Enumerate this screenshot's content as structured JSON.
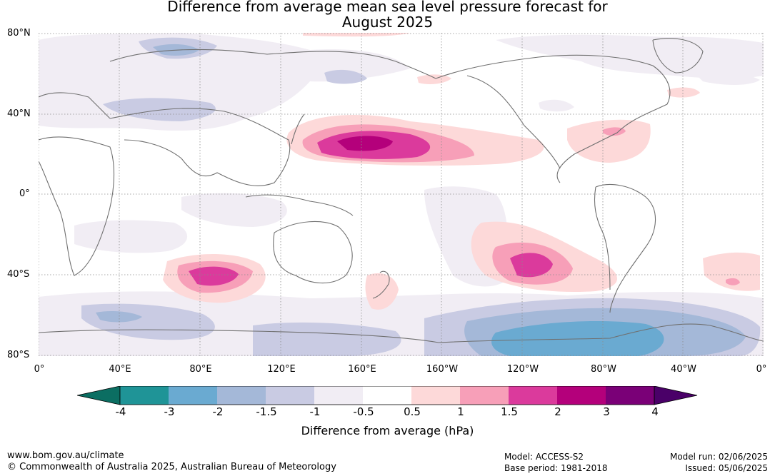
{
  "title_line1": "Difference from average mean sea level pressure forecast for",
  "title_line2": "August 2025",
  "lat_labels": [
    "80°N",
    "40°N",
    "0°",
    "40°S",
    "80°S"
  ],
  "lon_labels": [
    "0°",
    "40°E",
    "80°E",
    "120°E",
    "160°E",
    "160°W",
    "120°W",
    "80°W",
    "40°W",
    "0°"
  ],
  "colorbar": {
    "ticks": [
      "-4",
      "-3",
      "-2",
      "-1.5",
      "-1",
      "-0.5",
      "0.5",
      "1",
      "1.5",
      "2",
      "3",
      "4"
    ],
    "colors": [
      "#0b6e62",
      "#1f9497",
      "#6aaad1",
      "#a4b8d8",
      "#c9cbe3",
      "#f1edf4",
      "#ffffff",
      "#fdd9d9",
      "#f79fb8",
      "#db3a9c",
      "#b4007b",
      "#7a0077",
      "#4a0068"
    ],
    "label": "Difference from average (hPa)"
  },
  "footer": {
    "url": "www.bom.gov.au/climate",
    "copyright": "© Commonwealth of Australia 2025, Australian Bureau of Meteorology",
    "model": "Model: ACCESS-S2",
    "base_period": "Base period: 1981-2018",
    "model_run": "Model run: 02/06/2025",
    "issued": "Issued: 05/06/2025"
  }
}
